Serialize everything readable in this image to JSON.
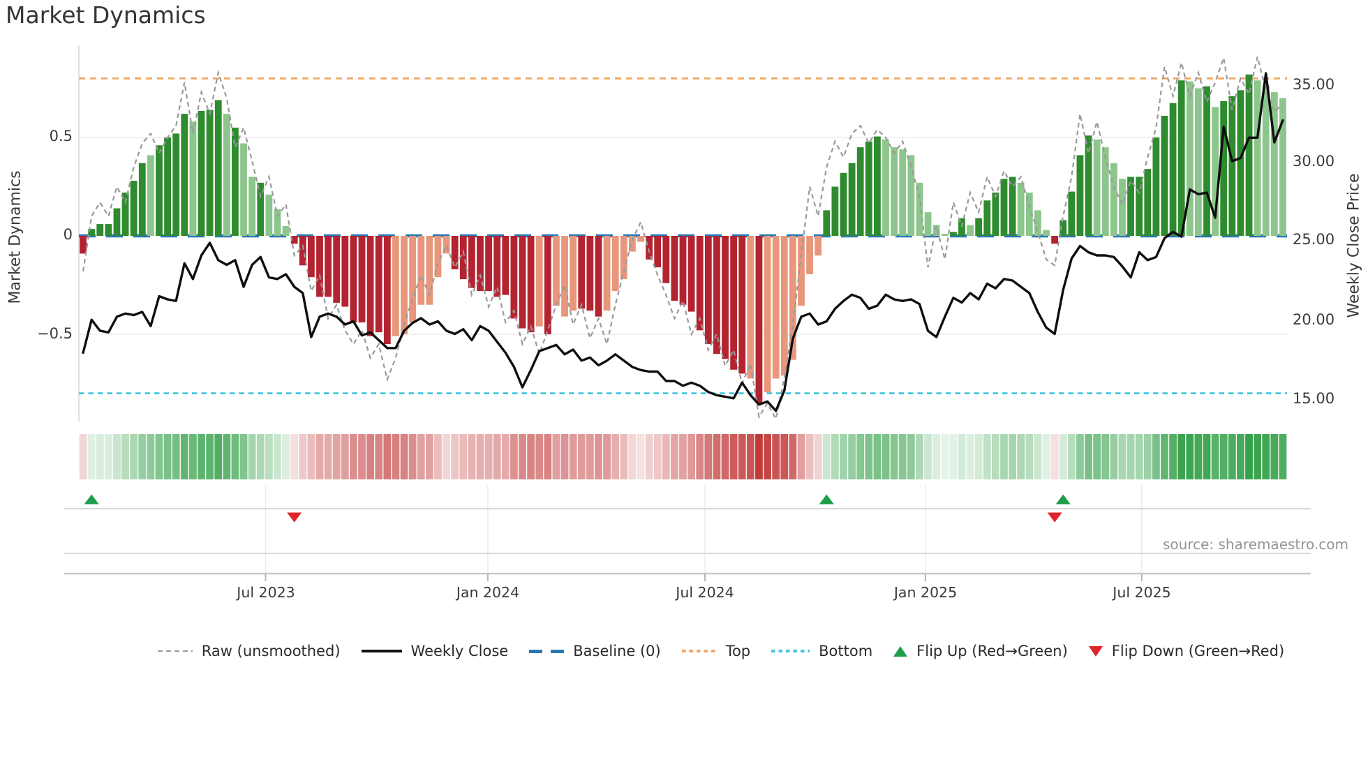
{
  "title": "Market Dynamics",
  "source_note": "source: sharemaestro.com",
  "left_axis": {
    "label": "Market Dynamics",
    "ticks": [
      "0.5",
      "0",
      "−0.5"
    ]
  },
  "right_axis": {
    "label": "Weekly Close Price",
    "ticks": [
      "35.00",
      "30.00",
      "25.00",
      "20.00",
      "15.00"
    ]
  },
  "x_axis": {
    "ticks": [
      "Jul 2023",
      "Jan 2024",
      "Jul 2024",
      "Jan 2025",
      "Jul 2025"
    ]
  },
  "legend": {
    "items": [
      {
        "label": "Raw (unsmoothed)"
      },
      {
        "label": "Weekly Close"
      },
      {
        "label": "Baseline (0)"
      },
      {
        "label": "Top"
      },
      {
        "label": "Bottom"
      },
      {
        "label": "Flip Up (Red→Green)"
      },
      {
        "label": "Flip Down (Green→Red)"
      }
    ]
  },
  "colors": {
    "bar_green_dark": "#2e8b2e",
    "bar_green_light": "#8cc68c",
    "bar_red_dark": "#b32430",
    "bar_red_light": "#e8977c",
    "baseline_blue": "#2878b4",
    "top_orange": "#f2a661",
    "bottom_cyan": "#3fc6e0",
    "raw_gray": "#999999",
    "price_black": "#0f0f0f",
    "flip_up_green": "#1e9e4a",
    "flip_down_red": "#e02428",
    "heat_green": "#2f9e44",
    "heat_red": "#c23b3b",
    "grid": "#ededf2",
    "spine": "#d7d7de",
    "band_line": "#d9d9d9",
    "axis_line": "#c9c9c9"
  },
  "chart_data": {
    "type": "combo",
    "title": "Market Dynamics",
    "left_axis_label": "Market Dynamics",
    "right_axis_label": "Weekly Close Price",
    "x_tick_labels": [
      "Jul 2023",
      "Jan 2024",
      "Jul 2024",
      "Jan 2025",
      "Jul 2025"
    ],
    "x_tick_bar_positions": [
      21.6,
      47.9,
      73.6,
      99.7,
      125.3
    ],
    "left_ylim": [
      -0.94,
      0.97
    ],
    "right_ylim": [
      14.1,
      37.6
    ],
    "left_yticks": [
      0.5,
      0,
      -0.5
    ],
    "right_yticks": [
      35,
      30,
      25,
      20,
      15
    ],
    "baseline": 0,
    "top_threshold": 0.8,
    "bottom_threshold": -0.8,
    "n_points": 143,
    "oscillator": {
      "name": "Market Dynamics",
      "type": "bar",
      "values": [
        -0.09,
        0.035,
        0.06,
        0.06,
        0.14,
        0.22,
        0.28,
        0.37,
        0.41,
        0.46,
        0.5,
        0.52,
        0.62,
        0.58,
        0.635,
        0.64,
        0.69,
        0.62,
        0.55,
        0.47,
        0.3,
        0.27,
        0.21,
        0.135,
        0.05,
        -0.04,
        -0.15,
        -0.21,
        -0.31,
        -0.31,
        -0.34,
        -0.36,
        -0.44,
        -0.44,
        -0.51,
        -0.49,
        -0.55,
        -0.51,
        -0.5,
        -0.44,
        -0.35,
        -0.35,
        -0.21,
        -0.09,
        -0.17,
        -0.22,
        -0.265,
        -0.28,
        -0.28,
        -0.31,
        -0.3,
        -0.42,
        -0.47,
        -0.49,
        -0.46,
        -0.5,
        -0.355,
        -0.41,
        -0.38,
        -0.37,
        -0.38,
        -0.41,
        -0.38,
        -0.28,
        -0.22,
        -0.08,
        -0.03,
        -0.12,
        -0.16,
        -0.24,
        -0.33,
        -0.35,
        -0.385,
        -0.48,
        -0.55,
        -0.6,
        -0.625,
        -0.68,
        -0.7,
        -0.725,
        -0.85,
        -0.795,
        -0.725,
        -0.71,
        -0.63,
        -0.355,
        -0.195,
        -0.1,
        0.13,
        0.25,
        0.32,
        0.37,
        0.45,
        0.48,
        0.505,
        0.49,
        0.45,
        0.44,
        0.41,
        0.27,
        0.12,
        0.055,
        0.01,
        0.02,
        0.09,
        0.055,
        0.09,
        0.18,
        0.22,
        0.29,
        0.3,
        0.27,
        0.22,
        0.13,
        0.03,
        -0.04,
        0.08,
        0.225,
        0.41,
        0.51,
        0.49,
        0.45,
        0.37,
        0.29,
        0.3,
        0.3,
        0.34,
        0.5,
        0.61,
        0.675,
        0.79,
        0.785,
        0.75,
        0.76,
        0.655,
        0.685,
        0.71,
        0.74,
        0.82,
        0.79,
        0.765,
        0.73,
        0.7
      ],
      "light_shade": [
        0,
        0,
        0,
        0,
        0,
        0,
        0,
        0,
        1,
        0,
        0,
        0,
        0,
        1,
        0,
        0,
        0,
        1,
        0,
        1,
        1,
        0,
        1,
        1,
        1,
        0,
        0,
        0,
        0,
        0,
        0,
        0,
        0,
        0,
        0,
        0,
        0,
        1,
        1,
        1,
        1,
        1,
        1,
        1,
        0,
        0,
        0,
        0,
        0,
        0,
        0,
        0,
        0,
        0,
        1,
        0,
        1,
        1,
        1,
        0,
        0,
        0,
        1,
        1,
        1,
        1,
        1,
        0,
        0,
        0,
        0,
        0,
        0,
        0,
        0,
        0,
        0,
        0,
        0,
        1,
        0,
        1,
        1,
        1,
        1,
        1,
        1,
        1,
        0,
        0,
        0,
        0,
        0,
        0,
        0,
        1,
        1,
        1,
        1,
        1,
        1,
        1,
        1,
        0,
        0,
        1,
        0,
        0,
        0,
        0,
        0,
        1,
        1,
        1,
        1,
        0,
        0,
        0,
        0,
        0,
        1,
        1,
        1,
        1,
        0,
        0,
        0,
        0,
        0,
        0,
        0,
        1,
        1,
        0,
        1,
        0,
        0,
        0,
        0,
        1,
        1,
        1,
        1
      ]
    },
    "raw": {
      "name": "Raw (unsmoothed)",
      "type": "line",
      "style": "dashed",
      "values": [
        -0.18,
        0.1,
        0.17,
        0.1,
        0.25,
        0.17,
        0.35,
        0.47,
        0.52,
        0.42,
        0.5,
        0.56,
        0.78,
        0.52,
        0.73,
        0.62,
        0.83,
        0.7,
        0.45,
        0.55,
        0.38,
        0.2,
        0.3,
        0.1,
        0.16,
        -0.1,
        -0.05,
        -0.28,
        -0.2,
        -0.42,
        -0.35,
        -0.48,
        -0.55,
        -0.48,
        -0.62,
        -0.55,
        -0.73,
        -0.62,
        -0.45,
        -0.32,
        -0.2,
        -0.3,
        -0.14,
        -0.05,
        -0.16,
        -0.08,
        -0.3,
        -0.2,
        -0.36,
        -0.26,
        -0.44,
        -0.38,
        -0.55,
        -0.46,
        -0.6,
        -0.48,
        -0.35,
        -0.25,
        -0.45,
        -0.35,
        -0.52,
        -0.42,
        -0.55,
        -0.35,
        -0.18,
        -0.02,
        0.07,
        -0.08,
        -0.2,
        -0.3,
        -0.42,
        -0.33,
        -0.5,
        -0.42,
        -0.58,
        -0.5,
        -0.66,
        -0.58,
        -0.75,
        -0.65,
        -0.92,
        -0.85,
        -0.93,
        -0.72,
        -0.45,
        -0.1,
        0.25,
        0.1,
        0.35,
        0.48,
        0.4,
        0.52,
        0.56,
        0.47,
        0.54,
        0.5,
        0.42,
        0.48,
        0.35,
        0.2,
        -0.16,
        0.05,
        -0.12,
        0.17,
        0.05,
        0.22,
        0.12,
        0.3,
        0.2,
        0.33,
        0.25,
        0.3,
        0.15,
        0.02,
        -0.12,
        -0.15,
        0.1,
        0.3,
        0.62,
        0.42,
        0.58,
        0.4,
        0.25,
        0.16,
        0.28,
        0.22,
        0.4,
        0.55,
        0.86,
        0.71,
        0.88,
        0.71,
        0.83,
        0.68,
        0.78,
        0.905,
        0.64,
        0.8,
        0.72,
        0.91,
        0.74,
        0.63,
        0.67
      ]
    },
    "price": {
      "name": "Weekly Close",
      "type": "line",
      "axis": "right",
      "values": [
        18.0,
        20.1,
        19.4,
        19.3,
        20.3,
        20.5,
        20.4,
        20.6,
        19.7,
        21.6,
        21.4,
        21.3,
        23.7,
        22.7,
        24.2,
        25.0,
        23.9,
        23.6,
        23.9,
        22.2,
        23.6,
        24.1,
        22.8,
        22.7,
        23.0,
        22.2,
        21.8,
        19.0,
        20.3,
        20.5,
        20.3,
        19.8,
        20.0,
        19.1,
        19.3,
        18.8,
        18.3,
        18.3,
        19.4,
        19.9,
        20.2,
        19.8,
        20.0,
        19.4,
        19.2,
        19.5,
        18.8,
        19.7,
        19.4,
        18.7,
        18.0,
        17.1,
        15.8,
        16.9,
        18.1,
        18.3,
        18.5,
        17.9,
        18.2,
        17.5,
        17.7,
        17.2,
        17.5,
        17.9,
        17.5,
        17.1,
        16.9,
        16.8,
        16.8,
        16.2,
        16.2,
        15.9,
        16.1,
        15.9,
        15.5,
        15.3,
        15.2,
        15.1,
        16.1,
        15.3,
        14.7,
        14.9,
        14.3,
        15.6,
        18.9,
        20.3,
        20.5,
        19.8,
        20.0,
        20.8,
        21.3,
        21.7,
        21.5,
        20.8,
        21.0,
        21.7,
        21.4,
        21.3,
        21.4,
        21.1,
        19.4,
        19.0,
        20.3,
        21.5,
        21.2,
        21.8,
        21.4,
        22.4,
        22.1,
        22.7,
        22.6,
        22.2,
        21.8,
        20.6,
        19.6,
        19.2,
        22.0,
        24.0,
        24.8,
        24.4,
        24.2,
        24.2,
        24.1,
        23.5,
        22.8,
        24.4,
        23.9,
        24.1,
        25.3,
        25.7,
        25.4,
        28.4,
        28.1,
        28.2,
        26.6,
        32.4,
        30.2,
        30.4,
        31.7,
        31.7,
        35.8,
        31.4,
        32.8
      ]
    },
    "flip_up_indices": [
      1,
      88,
      116
    ],
    "flip_down_indices": [
      25,
      115
    ],
    "heatmap": {
      "source": "oscillator-values",
      "position": "below-main"
    }
  }
}
